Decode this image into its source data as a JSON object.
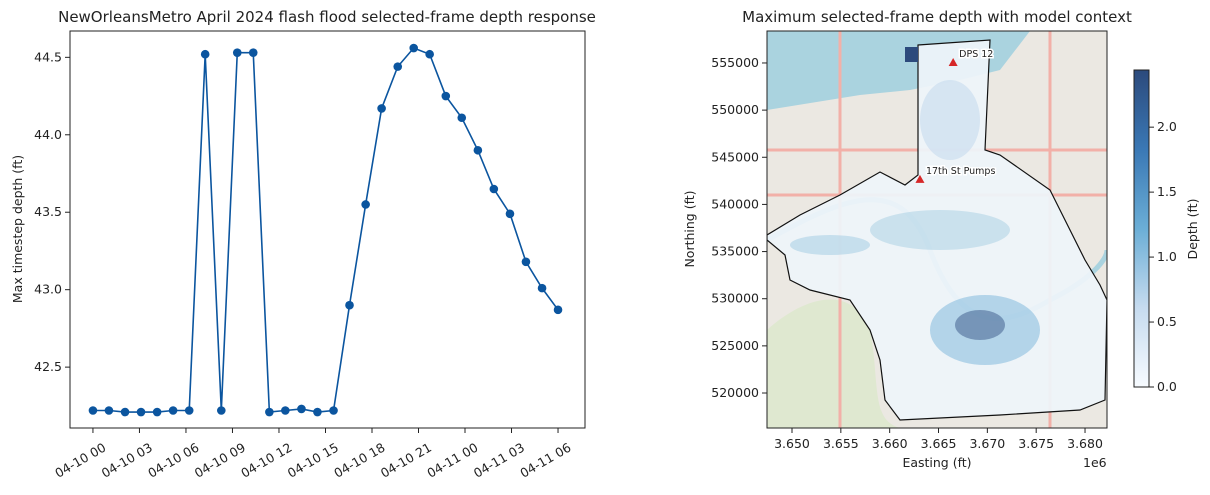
{
  "chart_data": [
    {
      "type": "line",
      "title": "NewOrleansMetro April 2024 flash flood selected-frame depth response",
      "y_label": "Max timestep depth (ft)",
      "x": [
        0,
        1.03,
        2.07,
        3.1,
        4.14,
        5.17,
        6.21,
        7.24,
        8.28,
        9.31,
        10.34,
        11.38,
        12.41,
        13.45,
        14.48,
        15.52,
        16.55,
        17.59,
        18.62,
        19.66,
        20.69,
        21.72,
        22.76,
        23.79,
        24.83,
        25.86,
        26.9,
        27.93,
        28.97,
        30
      ],
      "series": [
        {
          "color": "#0b559f",
          "values": [
            42.22,
            42.22,
            42.21,
            42.21,
            42.21,
            42.22,
            42.22,
            44.52,
            42.22,
            44.53,
            44.53,
            42.21,
            42.22,
            42.23,
            42.21,
            42.22,
            42.9,
            43.55,
            44.17,
            44.44,
            44.56,
            44.52,
            44.25,
            44.11,
            43.9,
            43.65,
            43.49,
            43.18,
            43.01,
            42.87
          ]
        }
      ],
      "xlim": [
        -1.48,
        31.74
      ],
      "xticks": [
        {
          "value": 0,
          "label": "04-10 00"
        },
        {
          "value": 3,
          "label": "04-10 03"
        },
        {
          "value": 6,
          "label": "04-10 06"
        },
        {
          "value": 9,
          "label": "04-10 09"
        },
        {
          "value": 12,
          "label": "04-10 12"
        },
        {
          "value": 15,
          "label": "04-10 15"
        },
        {
          "value": 18,
          "label": "04-10 18"
        },
        {
          "value": 21,
          "label": "04-10 21"
        },
        {
          "value": 24,
          "label": "04-11 00"
        },
        {
          "value": 27,
          "label": "04-11 03"
        },
        {
          "value": 30,
          "label": "04-11 06"
        }
      ],
      "ylim": [
        42.107,
        44.67
      ],
      "yticks": [
        42.5,
        43.0,
        43.5,
        44.0,
        44.5
      ],
      "ytick_labels": [
        "42.5",
        "43.0",
        "43.5",
        "44.0",
        "44.5"
      ]
    },
    {
      "type": "map",
      "title": "Maximum selected-frame depth with model context",
      "x_label": "Easting (ft)",
      "y_label": "Northing (ft)",
      "x_offset_label": "1e6",
      "xlim": [
        3647440,
        3682250
      ],
      "xticks": [
        {
          "value": 3650000,
          "label": "3.650"
        },
        {
          "value": 3655000,
          "label": "3.655"
        },
        {
          "value": 3660000,
          "label": "3.660"
        },
        {
          "value": 3665000,
          "label": "3.665"
        },
        {
          "value": 3670000,
          "label": "3.670"
        },
        {
          "value": 3675000,
          "label": "3.675"
        },
        {
          "value": 3680000,
          "label": "3.680"
        }
      ],
      "ylim": [
        516290,
        558390
      ],
      "yticks": [
        520000,
        525000,
        530000,
        535000,
        540000,
        545000,
        550000,
        555000
      ],
      "points": {
        "color": "#d62728",
        "x": [
          3666500,
          3663100
        ],
        "y": [
          555000,
          542600
        ],
        "labels": [
          "DPS 12",
          "17th St Pumps"
        ]
      },
      "colorbar": {
        "label": "Depth (ft)",
        "lim": [
          0,
          2.44
        ],
        "colors": [
          "#f7fbff",
          "#c6dbef",
          "#6baed6",
          "#3a78b5",
          "#2c4a7c"
        ],
        "ticks": [
          {
            "value": 0,
            "label": "0.0"
          },
          0.5,
          {
            "value": 1,
            "label": "1.0"
          },
          1.5,
          {
            "value": 2,
            "label": "2.0"
          }
        ]
      }
    }
  ]
}
